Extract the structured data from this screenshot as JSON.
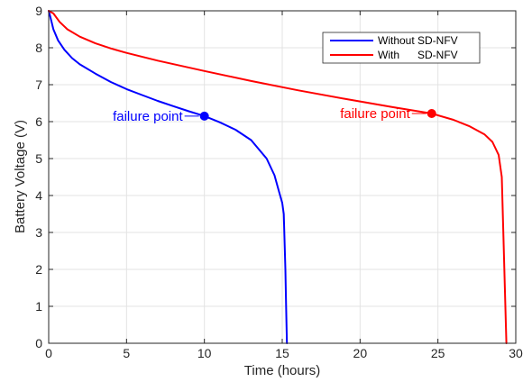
{
  "chart_data": {
    "type": "line",
    "title": "",
    "xlabel": "Time (hours)",
    "ylabel": "Battery Voltage (V)",
    "xlim": [
      0,
      30
    ],
    "ylim": [
      0,
      9
    ],
    "xticks": [
      0,
      5,
      10,
      15,
      20,
      25,
      30
    ],
    "yticks": [
      0,
      1,
      2,
      3,
      4,
      5,
      6,
      7,
      8,
      9
    ],
    "grid": true,
    "legend_position": "top-right",
    "series": [
      {
        "name": "Without SD-NFV",
        "legend_label": "Without SD-NFV",
        "color": "#0000ff",
        "x": [
          0,
          0.1,
          0.3,
          0.6,
          1,
          1.5,
          2,
          3,
          4,
          5,
          6,
          7,
          8,
          9,
          10,
          11,
          12,
          13,
          14,
          14.5,
          14.8,
          15.0,
          15.1,
          15.2,
          15.25,
          15.3
        ],
        "y": [
          9.0,
          8.85,
          8.5,
          8.2,
          7.95,
          7.72,
          7.55,
          7.3,
          7.07,
          6.88,
          6.72,
          6.56,
          6.42,
          6.28,
          6.15,
          5.98,
          5.78,
          5.5,
          5.0,
          4.55,
          4.1,
          3.8,
          3.5,
          2.0,
          1.0,
          0.0
        ]
      },
      {
        "name": "With SD-NFV",
        "legend_label": "With      SD-NFV",
        "color": "#ff0000",
        "x": [
          0,
          0.3,
          0.7,
          1.2,
          2,
          3,
          4,
          5,
          7,
          10,
          13,
          16,
          19,
          22,
          24.6,
          26,
          27,
          28,
          28.5,
          28.9,
          29.1,
          29.2,
          29.3,
          29.35,
          29.4
        ],
        "y": [
          9.0,
          8.93,
          8.7,
          8.5,
          8.3,
          8.12,
          7.98,
          7.86,
          7.65,
          7.37,
          7.1,
          6.85,
          6.62,
          6.4,
          6.22,
          6.05,
          5.88,
          5.65,
          5.45,
          5.1,
          4.5,
          3.0,
          1.5,
          0.7,
          0.0
        ]
      }
    ],
    "annotations": [
      {
        "text": "failure point",
        "series": 0,
        "x": 10,
        "y": 6.15,
        "color": "#0000ff"
      },
      {
        "text": "failure point",
        "series": 1,
        "x": 24.6,
        "y": 6.22,
        "color": "#ff0000"
      }
    ]
  }
}
